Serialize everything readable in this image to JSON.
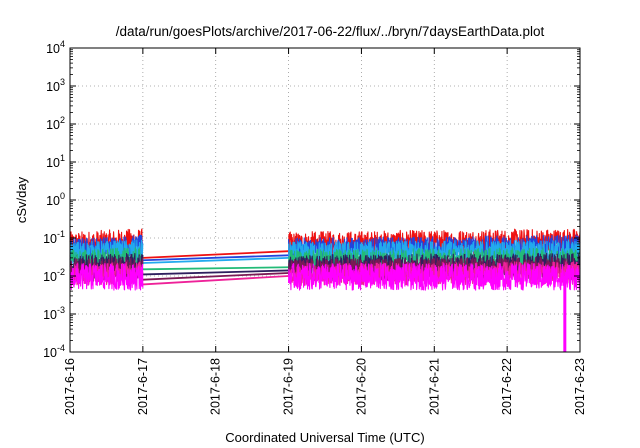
{
  "chart_data": {
    "type": "line",
    "title": "/data/run/goesPlots/archive/2017-06-22/flux/../bryn/7daysEarthData.plot",
    "xlabel": "Coordinated Universal Time (UTC)",
    "ylabel": "cSv/day",
    "yscale": "log",
    "ylim": [
      0.0001,
      10000
    ],
    "xlim": [
      "2017-06-16",
      "2017-06-23"
    ],
    "x_ticks": [
      "2017-6-16",
      "2017-6-17",
      "2017-6-18",
      "2017-6-19",
      "2017-6-20",
      "2017-6-21",
      "2017-6-22",
      "2017-6-23"
    ],
    "y_ticks": [
      {
        "value": 0.0001,
        "base": "10",
        "exp": "-4"
      },
      {
        "value": 0.001,
        "base": "10",
        "exp": "-3"
      },
      {
        "value": 0.01,
        "base": "10",
        "exp": "-2"
      },
      {
        "value": 0.1,
        "base": "10",
        "exp": "-1"
      },
      {
        "value": 1,
        "base": "10",
        "exp": "0"
      },
      {
        "value": 10,
        "base": "10",
        "exp": "1"
      },
      {
        "value": 100,
        "base": "10",
        "exp": "2"
      },
      {
        "value": 1000,
        "base": "10",
        "exp": "3"
      },
      {
        "value": 10000,
        "base": "10",
        "exp": "4"
      }
    ],
    "grid": true,
    "data_gap": [
      "2017-06-17",
      "2017-06-19"
    ],
    "series": [
      {
        "color": "#ee1111",
        "segments": [
          {
            "x": [
              "2017-06-16",
              "2017-06-17"
            ],
            "y": [
              0.065,
              0.08
            ],
            "noise": 0.35
          },
          {
            "x": [
              "2017-06-17",
              "2017-06-19"
            ],
            "y": [
              0.03,
              0.045
            ]
          },
          {
            "x": [
              "2017-06-19",
              "2017-06-23"
            ],
            "y": [
              0.065,
              0.08
            ],
            "noise": 0.35
          }
        ]
      },
      {
        "color": "#2244dd",
        "segments": [
          {
            "x": [
              "2017-06-16",
              "2017-06-17"
            ],
            "y": [
              0.05,
              0.06
            ],
            "noise": 0.3
          },
          {
            "x": [
              "2017-06-17",
              "2017-06-19"
            ],
            "y": [
              0.026,
              0.035
            ]
          },
          {
            "x": [
              "2017-06-19",
              "2017-06-23"
            ],
            "y": [
              0.05,
              0.06
            ],
            "noise": 0.3
          }
        ]
      },
      {
        "color": "#22aaee",
        "segments": [
          {
            "x": [
              "2017-06-16",
              "2017-06-17"
            ],
            "y": [
              0.04,
              0.045
            ],
            "noise": 0.3
          },
          {
            "x": [
              "2017-06-17",
              "2017-06-19"
            ],
            "y": [
              0.022,
              0.03
            ]
          },
          {
            "x": [
              "2017-06-19",
              "2017-06-23"
            ],
            "y": [
              0.04,
              0.045
            ],
            "noise": 0.3
          }
        ]
      },
      {
        "color": "#22bb77",
        "segments": [
          {
            "x": [
              "2017-06-16",
              "2017-06-17"
            ],
            "y": [
              0.025,
              0.028
            ],
            "noise": 0.3
          },
          {
            "x": [
              "2017-06-17",
              "2017-06-19"
            ],
            "y": [
              0.015,
              0.017
            ]
          },
          {
            "x": [
              "2017-06-19",
              "2017-06-23"
            ],
            "y": [
              0.025,
              0.028
            ],
            "noise": 0.3
          }
        ]
      },
      {
        "color": "#2e1f5e",
        "segments": [
          {
            "x": [
              "2017-06-16",
              "2017-06-17"
            ],
            "y": [
              0.018,
              0.02
            ],
            "noise": 0.3
          },
          {
            "x": [
              "2017-06-17",
              "2017-06-19"
            ],
            "y": [
              0.011,
              0.014
            ]
          },
          {
            "x": [
              "2017-06-19",
              "2017-06-23"
            ],
            "y": [
              0.018,
              0.02
            ],
            "noise": 0.3
          }
        ]
      },
      {
        "color": "#7a1a55",
        "segments": [
          {
            "x": [
              "2017-06-16",
              "2017-06-17"
            ],
            "y": [
              0.014,
              0.016
            ],
            "noise": 0.3
          },
          {
            "x": [
              "2017-06-17",
              "2017-06-19"
            ],
            "y": [
              0.008,
              0.012
            ]
          },
          {
            "x": [
              "2017-06-19",
              "2017-06-23"
            ],
            "y": [
              0.014,
              0.016
            ],
            "noise": 0.3
          }
        ]
      },
      {
        "color": "#ee2299",
        "segments": [
          {
            "x": [
              "2017-06-16",
              "2017-06-17"
            ],
            "y": [
              0.011,
              0.012
            ],
            "noise": 0.3
          },
          {
            "x": [
              "2017-06-17",
              "2017-06-19"
            ],
            "y": [
              0.006,
              0.01
            ]
          },
          {
            "x": [
              "2017-06-19",
              "2017-06-23"
            ],
            "y": [
              0.011,
              0.012
            ],
            "noise": 0.3
          }
        ]
      },
      {
        "color": "#ff00ff",
        "segments": [
          {
            "x": [
              "2017-06-16",
              "2017-06-17"
            ],
            "y": [
              0.0095,
              0.0095
            ],
            "noise": 0.35
          },
          {
            "x": [
              "2017-06-19",
              "2017-06-23"
            ],
            "y": [
              0.0095,
              0.0095
            ],
            "noise": 0.35
          }
        ],
        "dropout": {
          "x": "2017-06-22 19:00",
          "y": 0.0001
        }
      }
    ]
  }
}
